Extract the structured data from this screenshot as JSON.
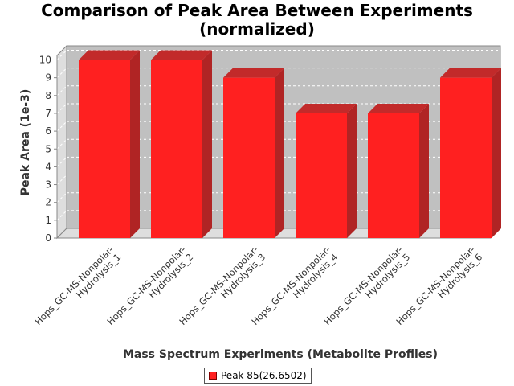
{
  "chart_data": {
    "type": "bar",
    "title": "Comparison of Peak Area Between Experiments",
    "subtitle": "(normalized)",
    "xlabel": "Mass Spectrum Experiments (Metabolite Profiles)",
    "ylabel": "Peak Area (1e-3)",
    "ylim": [
      0,
      10.5
    ],
    "yticks": [
      "0",
      "1",
      "2",
      "3",
      "4",
      "5",
      "6",
      "7",
      "8",
      "9",
      "10"
    ],
    "categories": [
      [
        "Hops_GC-MS-Nonpolar-",
        "Hydrolysis_1"
      ],
      [
        "Hops_GC-MS-Nonpolar-",
        "Hydrolysis_2"
      ],
      [
        "Hops_GC-MS-Nonpolar-",
        "Hydrolysis_3"
      ],
      [
        "Hops_GC-MS-Nonpolar-",
        "Hydrolysis_4"
      ],
      [
        "Hops_GC-MS-Nonpolar-",
        "Hydrolysis_5"
      ],
      [
        "Hops_GC-MS-Nonpolar-",
        "Hydrolysis_6"
      ]
    ],
    "series": [
      {
        "name": "Peak 85(26.6502)",
        "values": [
          10,
          10,
          9,
          7,
          7,
          9
        ],
        "color": "#ff2020"
      }
    ],
    "grid": true,
    "legend_position": "bottom-center",
    "plot_background": "#c0c0c0",
    "style": "3d-bar"
  }
}
